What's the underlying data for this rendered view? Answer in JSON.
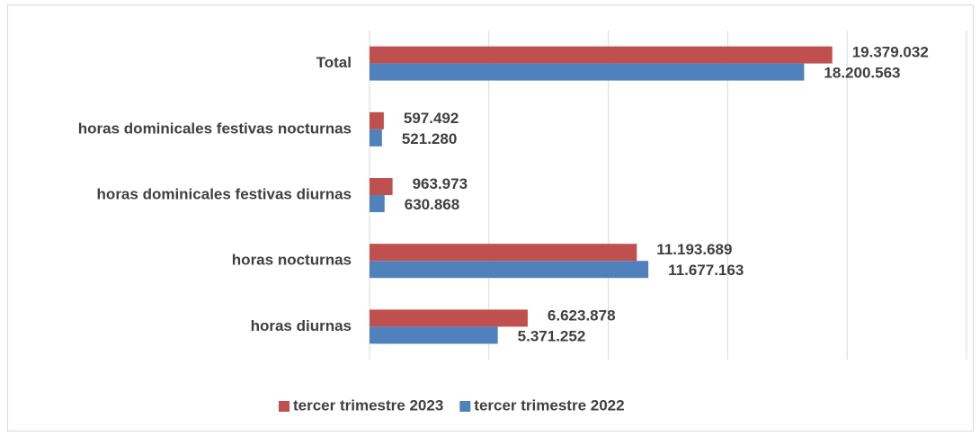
{
  "chart_data": {
    "type": "hbar",
    "categories": [
      "Total",
      "horas dominicales festivas nocturnas",
      "horas dominicales festivas diurnas",
      "horas nocturnas",
      "horas diurnas"
    ],
    "series": [
      {
        "name": "tercer trimestre 2023",
        "color": "#c0504d",
        "values": [
          19379032,
          597492,
          963973,
          11193689,
          6623878
        ],
        "value_labels": [
          "19.379.032",
          "597.492",
          "963.973",
          "11.193.689",
          "6.623.878"
        ]
      },
      {
        "name": "tercer trimestre 2022",
        "color": "#4f81bd",
        "values": [
          18200563,
          521280,
          630868,
          11677163,
          5371252
        ],
        "value_labels": [
          "18.200.563",
          "521.280",
          "630.868",
          "11.677.163",
          "5.371.252"
        ]
      }
    ],
    "xlim": [
      0,
      25000000
    ],
    "xticks": [
      0,
      5000000,
      10000000,
      15000000,
      20000000,
      25000000
    ],
    "grid": true,
    "legend": "bottom"
  }
}
